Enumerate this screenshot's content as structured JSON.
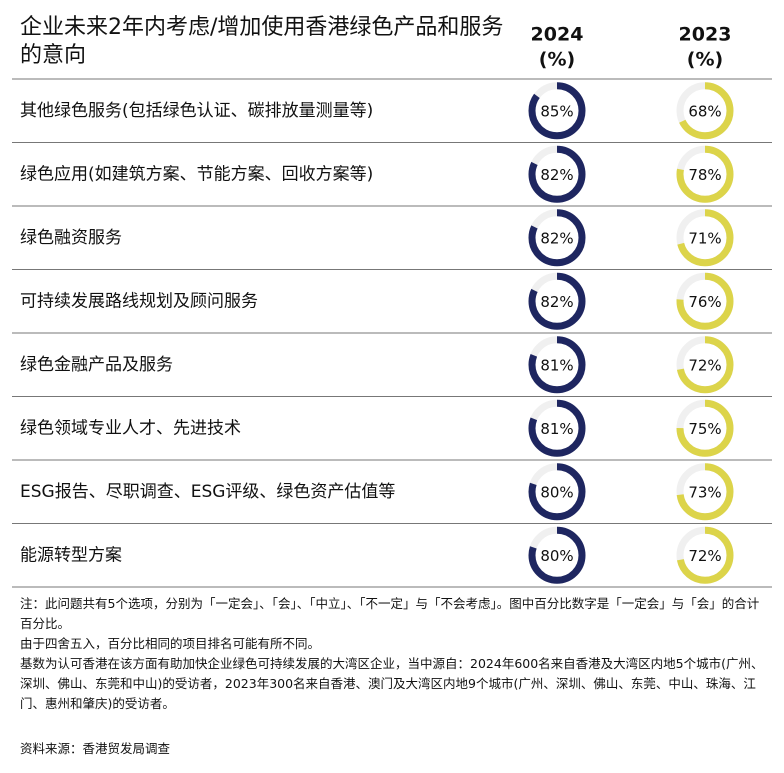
{
  "chart_data": {
    "type": "donut-table",
    "title": "企业未来2年内考虑/增加使用香港绿色产品和服务的意向",
    "unit_label": "(%)",
    "categories": [
      "其他绿色服务(包括绿色认证、碳排放量测量等)",
      "绿色应用(如建筑方案、节能方案、回收方案等)",
      "绿色融资服务",
      "可持续发展路线规划及顾问服务",
      "绿色金融产品及服务",
      "绿色领域专业人才、先进技术",
      "ESG报告、尽职调查、ESG评级、绿色资产估值等",
      "能源转型方案"
    ],
    "series": [
      {
        "name": "2024",
        "color": "#1e2660",
        "values": [
          85,
          82,
          82,
          82,
          81,
          81,
          80,
          80
        ],
        "value_labels": [
          "85%",
          "82%",
          "82%",
          "82%",
          "81%",
          "81%",
          "80%",
          "80%"
        ]
      },
      {
        "name": "2023",
        "color": "#dcd44a",
        "values": [
          68,
          78,
          71,
          76,
          72,
          75,
          73,
          72
        ],
        "value_labels": [
          "68%",
          "78%",
          "71%",
          "76%",
          "72%",
          "75%",
          "73%",
          "72%"
        ]
      }
    ],
    "notes": [
      "注：此问题共有5个选项，分别为「一定会」、「会」、「中立」、「不一定」与「不会考虑」。图中百分比数字是「一定会」与「会」的合计百分比。",
      "由于四舍五入，百分比相同的项目排名可能有所不同。",
      "基数为认可香港在该方面有助加快企业绿色可持续发展的大湾区企业，当中源自：2024年600名来自香港及大湾区内地5个城市(广州、深圳、佛山、东莞和中山)的受访者，2023年300名来自香港、澳门及大湾区内地9个城市(广州、深圳、佛山、东莞、中山、珠海、江门、惠州和肇庆)的受访者。"
    ],
    "source": "资料来源：香港贸发局调查",
    "ylim": [
      0,
      100
    ]
  }
}
